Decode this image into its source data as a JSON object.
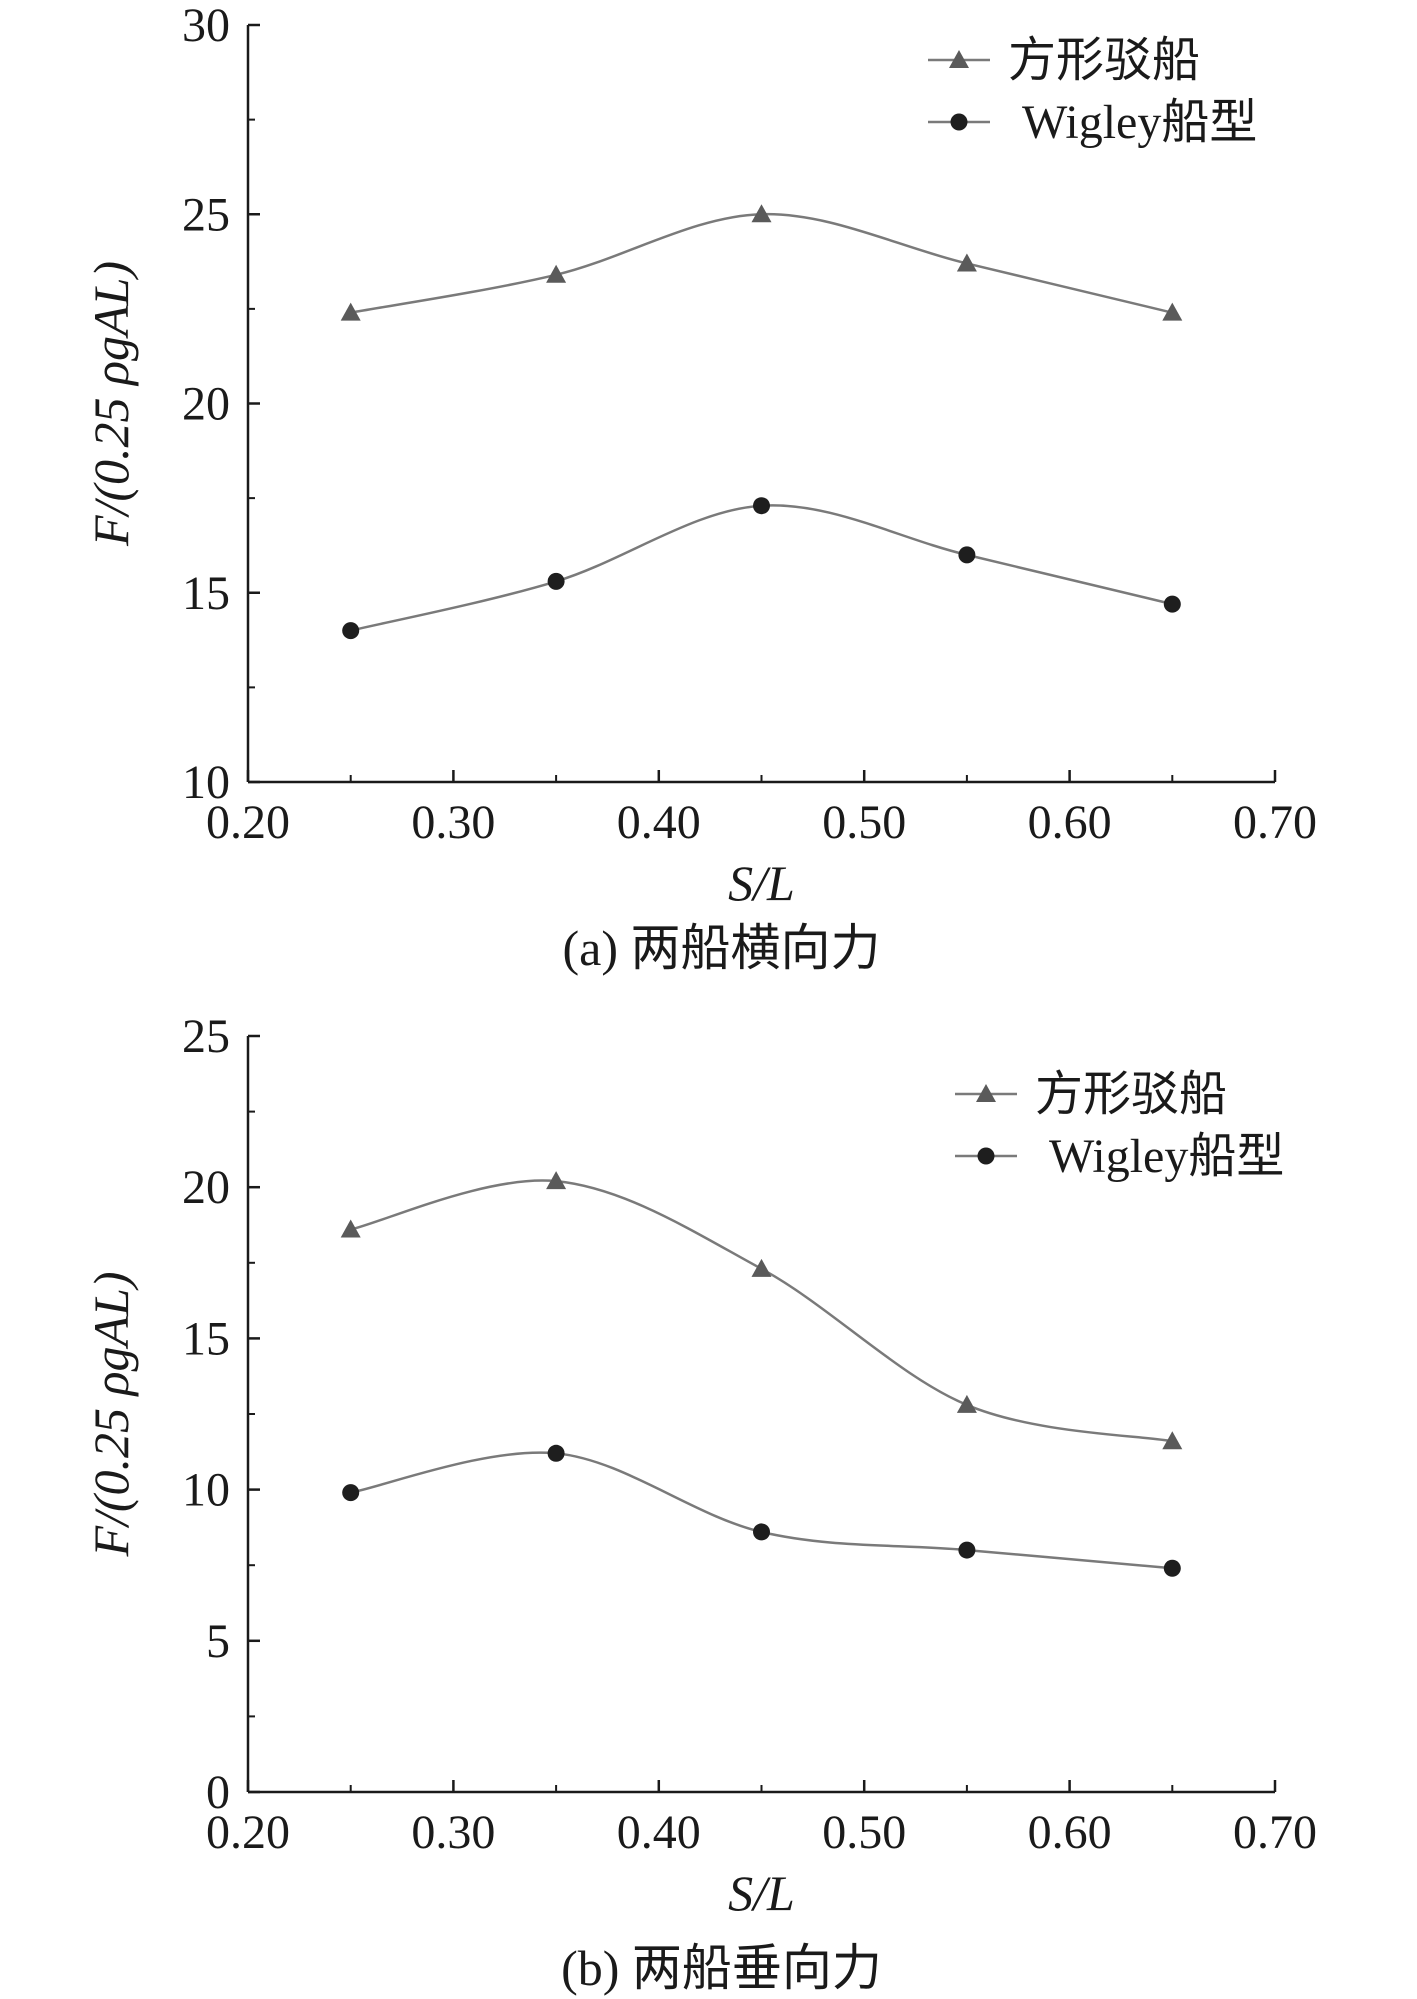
{
  "chart_data": [
    {
      "type": "line",
      "title": "",
      "caption": "(a) 两船横向力",
      "xlabel": "S/L",
      "ylabel": "F/(0.25 ρgAL)",
      "xlim": [
        0.2,
        0.7
      ],
      "ylim": [
        10,
        30
      ],
      "xticks": [
        0.2,
        0.3,
        0.4,
        0.5,
        0.6,
        0.7
      ],
      "xtick_labels": [
        "0.20",
        "0.30",
        "0.40",
        "0.50",
        "0.60",
        "0.70"
      ],
      "yticks": [
        10,
        15,
        20,
        25,
        30
      ],
      "ytick_labels": [
        "10",
        "15",
        "20",
        "25",
        "30"
      ],
      "legend_position": "top-right",
      "grid": false,
      "x": [
        0.25,
        0.35,
        0.45,
        0.55,
        0.65
      ],
      "series": [
        {
          "name": "方形驳船",
          "marker": "triangle",
          "values": [
            22.4,
            23.4,
            25.0,
            23.7,
            22.4
          ]
        },
        {
          "name": "Wigley船型",
          "marker": "circle",
          "values": [
            14.0,
            15.3,
            17.3,
            16.0,
            14.7
          ]
        }
      ]
    },
    {
      "type": "line",
      "title": "",
      "caption": "(b) 两船垂向力",
      "xlabel": "S/L",
      "ylabel": "F/(0.25 ρgAL)",
      "xlim": [
        0.2,
        0.7
      ],
      "ylim": [
        0,
        25
      ],
      "xticks": [
        0.2,
        0.3,
        0.4,
        0.5,
        0.6,
        0.7
      ],
      "xtick_labels": [
        "0.20",
        "0.30",
        "0.40",
        "0.50",
        "0.60",
        "0.70"
      ],
      "yticks": [
        0,
        5,
        10,
        15,
        20,
        25
      ],
      "ytick_labels": [
        "0",
        "5",
        "10",
        "15",
        "20",
        "25"
      ],
      "legend_position": "top-right",
      "grid": false,
      "x": [
        0.25,
        0.35,
        0.45,
        0.55,
        0.65
      ],
      "series": [
        {
          "name": "方形驳船",
          "marker": "triangle",
          "values": [
            18.6,
            20.2,
            17.3,
            12.8,
            11.6
          ]
        },
        {
          "name": "Wigley船型",
          "marker": "circle",
          "values": [
            9.9,
            11.2,
            8.6,
            8.0,
            7.4
          ]
        }
      ]
    }
  ],
  "colors": {
    "axis": "#1a1a1a",
    "line": "#7a7a7a",
    "triangle": "#5a5a5a",
    "circle": "#1e1e1e"
  }
}
